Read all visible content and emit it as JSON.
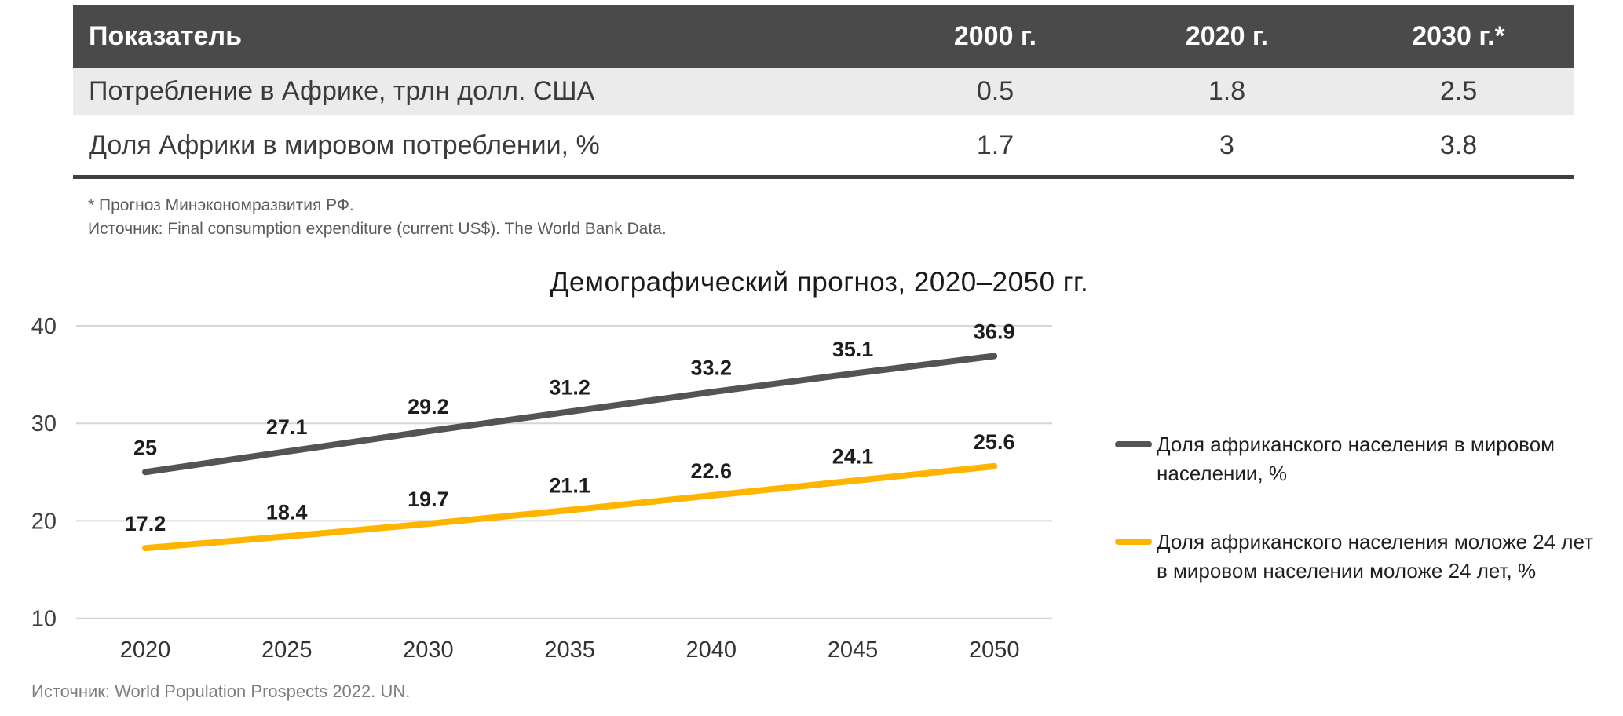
{
  "table": {
    "columns": [
      "Показатель",
      "2000 г.",
      "2020 г.",
      "2030 г.*"
    ],
    "rows": [
      {
        "label": "Потребление в Африке, трлн долл. США",
        "values": [
          "0.5",
          "1.8",
          "2.5"
        ]
      },
      {
        "label": "Доля Африки в мировом потреблении, %",
        "values": [
          "1.7",
          "3",
          "3.8"
        ]
      }
    ],
    "footnotes": [
      "* Прогноз Минэкономразвития РФ.",
      "Источник: Final consumption expenditure (current US$). The World Bank Data."
    ]
  },
  "chart_data": {
    "type": "line",
    "title": "Демографический прогноз, 2020–2050 гг.",
    "x": [
      2020,
      2025,
      2030,
      2035,
      2040,
      2045,
      2050
    ],
    "series": [
      {
        "name": "Доля африканского населения в мировом населении, %",
        "color": "#545454",
        "values": [
          25,
          27.1,
          29.2,
          31.2,
          33.2,
          35.1,
          36.9
        ]
      },
      {
        "name": "Доля африканского населения моложе 24 лет в мировом населении моложе 24 лет, %",
        "color": "#FFB400",
        "values": [
          17.2,
          18.4,
          19.7,
          21.1,
          22.6,
          24.1,
          25.6
        ]
      }
    ],
    "ylim": [
      10,
      40
    ],
    "yticks": [
      10,
      20,
      30,
      40
    ],
    "grid": true,
    "legend_position": "right",
    "data_labels": true,
    "source": "Источник: World Population Prospects 2022. UN."
  },
  "colors": {
    "table_header_bg": "#4a4a4a",
    "table_alt_row_bg": "#ebebeb",
    "table_border": "#3f3f3f",
    "gridline": "#d6d6d6",
    "series_dark": "#545454",
    "series_orange": "#FFB400"
  }
}
